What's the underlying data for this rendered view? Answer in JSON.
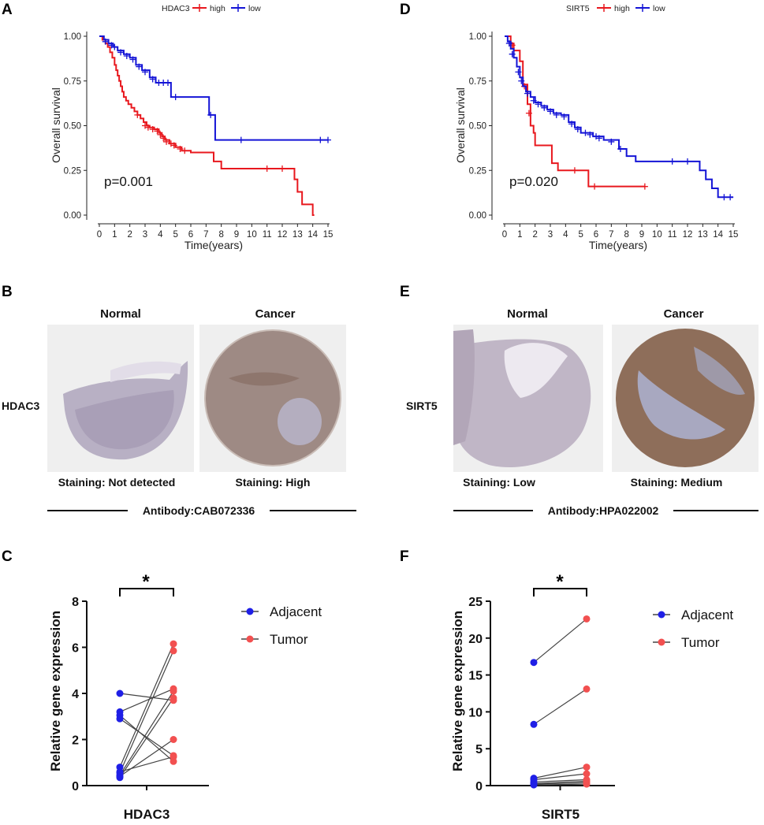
{
  "colors": {
    "high": "#e8181e",
    "low": "#1414d6",
    "adjacent": "#1f1fe6",
    "tumor": "#f25050",
    "line": "#444444"
  },
  "chart_data": [
    {
      "panel": "A",
      "type": "line",
      "subtype": "kaplan-meier",
      "legend_title": "HDAC3",
      "legend": [
        "high",
        "low"
      ],
      "xlabel": "Time(years)",
      "ylabel": "Overall survival",
      "xlim": [
        0,
        15
      ],
      "ylim": [
        0,
        1
      ],
      "xticks": [
        "0",
        "1",
        "2",
        "3",
        "4",
        "5",
        "6",
        "7",
        "8",
        "9",
        "10",
        "11",
        "12",
        "13",
        "14",
        "15"
      ],
      "yticks": [
        "0.00",
        "0.25",
        "0.50",
        "0.75",
        "1.00"
      ],
      "annotation": "p=0.001",
      "series": [
        {
          "name": "high",
          "color_key": "high",
          "steps": [
            [
              0,
              1.0
            ],
            [
              0.2,
              0.98
            ],
            [
              0.4,
              0.96
            ],
            [
              0.55,
              0.94
            ],
            [
              0.7,
              0.91
            ],
            [
              0.85,
              0.88
            ],
            [
              1.0,
              0.84
            ],
            [
              1.1,
              0.81
            ],
            [
              1.2,
              0.78
            ],
            [
              1.3,
              0.75
            ],
            [
              1.4,
              0.72
            ],
            [
              1.5,
              0.69
            ],
            [
              1.6,
              0.66
            ],
            [
              1.75,
              0.64
            ],
            [
              1.9,
              0.62
            ],
            [
              2.1,
              0.6
            ],
            [
              2.3,
              0.58
            ],
            [
              2.5,
              0.56
            ],
            [
              2.7,
              0.54
            ],
            [
              2.9,
              0.52
            ],
            [
              3.1,
              0.5
            ],
            [
              3.3,
              0.49
            ],
            [
              3.6,
              0.48
            ],
            [
              3.9,
              0.46
            ],
            [
              4.1,
              0.44
            ],
            [
              4.3,
              0.42
            ],
            [
              4.6,
              0.4
            ],
            [
              5.0,
              0.38
            ],
            [
              5.4,
              0.36
            ],
            [
              6.0,
              0.35
            ],
            [
              7.5,
              0.3
            ],
            [
              8.0,
              0.26
            ],
            [
              12.8,
              0.2
            ],
            [
              13.0,
              0.13
            ],
            [
              13.3,
              0.06
            ],
            [
              14.0,
              0.0
            ],
            [
              14.1,
              0.0
            ]
          ],
          "censors": [
            [
              2.5,
              0.56
            ],
            [
              3.0,
              0.5
            ],
            [
              3.2,
              0.49
            ],
            [
              3.5,
              0.48
            ],
            [
              3.8,
              0.47
            ],
            [
              4.0,
              0.45
            ],
            [
              4.2,
              0.43
            ],
            [
              4.4,
              0.41
            ],
            [
              4.7,
              0.4
            ],
            [
              4.9,
              0.39
            ],
            [
              5.3,
              0.37
            ],
            [
              5.6,
              0.36
            ],
            [
              11.0,
              0.26
            ],
            [
              12.0,
              0.26
            ]
          ]
        },
        {
          "name": "low",
          "color_key": "low",
          "steps": [
            [
              0,
              1.0
            ],
            [
              0.3,
              0.98
            ],
            [
              0.6,
              0.96
            ],
            [
              0.9,
              0.94
            ],
            [
              1.2,
              0.92
            ],
            [
              1.6,
              0.9
            ],
            [
              2.0,
              0.88
            ],
            [
              2.4,
              0.84
            ],
            [
              2.8,
              0.81
            ],
            [
              3.3,
              0.77
            ],
            [
              3.7,
              0.74
            ],
            [
              4.7,
              0.66
            ],
            [
              7.2,
              0.56
            ],
            [
              7.6,
              0.42
            ],
            [
              15.0,
              0.42
            ]
          ],
          "censors": [
            [
              0.4,
              0.97
            ],
            [
              0.8,
              0.95
            ],
            [
              1.0,
              0.94
            ],
            [
              1.4,
              0.91
            ],
            [
              1.8,
              0.89
            ],
            [
              2.2,
              0.87
            ],
            [
              2.6,
              0.83
            ],
            [
              3.0,
              0.8
            ],
            [
              3.5,
              0.76
            ],
            [
              3.9,
              0.74
            ],
            [
              4.2,
              0.74
            ],
            [
              4.5,
              0.74
            ],
            [
              5.0,
              0.66
            ],
            [
              7.3,
              0.56
            ],
            [
              9.3,
              0.42
            ],
            [
              14.5,
              0.42
            ],
            [
              15.0,
              0.42
            ]
          ]
        }
      ]
    },
    {
      "panel": "D",
      "type": "line",
      "subtype": "kaplan-meier",
      "legend_title": "SIRT5",
      "legend": [
        "high",
        "low"
      ],
      "xlabel": "Time(years)",
      "ylabel": "Overall survival",
      "xlim": [
        0,
        15
      ],
      "ylim": [
        0,
        1
      ],
      "xticks": [
        "0",
        "1",
        "2",
        "3",
        "4",
        "5",
        "6",
        "7",
        "8",
        "9",
        "10",
        "11",
        "12",
        "13",
        "14",
        "15"
      ],
      "yticks": [
        "0.00",
        "0.25",
        "0.50",
        "0.75",
        "1.00"
      ],
      "annotation": "p=0.020",
      "series": [
        {
          "name": "high",
          "color_key": "high",
          "steps": [
            [
              0,
              1.0
            ],
            [
              0.4,
              0.96
            ],
            [
              0.6,
              0.92
            ],
            [
              1.0,
              0.86
            ],
            [
              1.2,
              0.73
            ],
            [
              1.5,
              0.62
            ],
            [
              1.7,
              0.5
            ],
            [
              1.9,
              0.46
            ],
            [
              2.0,
              0.39
            ],
            [
              2.8,
              0.39
            ],
            [
              3.1,
              0.29
            ],
            [
              3.5,
              0.25
            ],
            [
              5.5,
              0.16
            ],
            [
              9.2,
              0.16
            ]
          ],
          "censors": [
            [
              0.5,
              0.95
            ],
            [
              1.3,
              0.72
            ],
            [
              1.6,
              0.57
            ],
            [
              4.6,
              0.25
            ],
            [
              5.9,
              0.16
            ],
            [
              9.2,
              0.16
            ]
          ]
        },
        {
          "name": "low",
          "color_key": "low",
          "steps": [
            [
              0,
              1.0
            ],
            [
              0.2,
              0.97
            ],
            [
              0.4,
              0.93
            ],
            [
              0.6,
              0.88
            ],
            [
              0.8,
              0.83
            ],
            [
              1.0,
              0.77
            ],
            [
              1.2,
              0.72
            ],
            [
              1.4,
              0.69
            ],
            [
              1.7,
              0.66
            ],
            [
              2.0,
              0.63
            ],
            [
              2.4,
              0.61
            ],
            [
              2.8,
              0.59
            ],
            [
              3.2,
              0.57
            ],
            [
              3.7,
              0.56
            ],
            [
              4.2,
              0.52
            ],
            [
              4.6,
              0.49
            ],
            [
              5.0,
              0.46
            ],
            [
              5.8,
              0.44
            ],
            [
              6.5,
              0.42
            ],
            [
              7.5,
              0.37
            ],
            [
              8.0,
              0.33
            ],
            [
              8.6,
              0.3
            ],
            [
              12.0,
              0.3
            ],
            [
              12.8,
              0.25
            ],
            [
              13.2,
              0.2
            ],
            [
              13.6,
              0.15
            ],
            [
              14.0,
              0.1
            ],
            [
              15.0,
              0.1
            ]
          ],
          "censors": [
            [
              0.3,
              0.96
            ],
            [
              0.5,
              0.9
            ],
            [
              0.9,
              0.8
            ],
            [
              1.1,
              0.75
            ],
            [
              1.5,
              0.68
            ],
            [
              1.9,
              0.64
            ],
            [
              2.2,
              0.62
            ],
            [
              2.6,
              0.6
            ],
            [
              3.0,
              0.58
            ],
            [
              3.4,
              0.56
            ],
            [
              3.9,
              0.55
            ],
            [
              4.4,
              0.51
            ],
            [
              4.8,
              0.48
            ],
            [
              5.3,
              0.46
            ],
            [
              5.6,
              0.45
            ],
            [
              6.0,
              0.44
            ],
            [
              6.2,
              0.43
            ],
            [
              7.0,
              0.41
            ],
            [
              7.6,
              0.37
            ],
            [
              11.0,
              0.3
            ],
            [
              12.0,
              0.3
            ],
            [
              14.4,
              0.1
            ],
            [
              14.8,
              0.1
            ]
          ]
        }
      ]
    },
    {
      "panel": "C",
      "type": "scatter",
      "subtype": "paired",
      "categories": [
        "Adjacent",
        "Tumor"
      ],
      "xlabel": "HDAC3",
      "ylabel": "Relative gene expression",
      "ylim": [
        0,
        8
      ],
      "yticks": [
        "0",
        "2",
        "4",
        "6",
        "8"
      ],
      "significance": "*",
      "pairs": [
        [
          4.0,
          3.7
        ],
        [
          3.2,
          4.2
        ],
        [
          3.05,
          1.05
        ],
        [
          2.9,
          1.3
        ],
        [
          0.8,
          6.15
        ],
        [
          0.55,
          5.85
        ],
        [
          0.45,
          4.1
        ],
        [
          0.35,
          3.8
        ],
        [
          0.4,
          2.0
        ],
        [
          0.6,
          1.25
        ]
      ]
    },
    {
      "panel": "F",
      "type": "scatter",
      "subtype": "paired",
      "categories": [
        "Adjacent",
        "Tumor"
      ],
      "xlabel": "SIRT5",
      "ylabel": "Relative gene expression",
      "ylim": [
        0,
        25
      ],
      "yticks": [
        "0",
        "5",
        "10",
        "15",
        "20",
        "25"
      ],
      "significance": "*",
      "pairs": [
        [
          16.7,
          22.6
        ],
        [
          8.3,
          13.1
        ],
        [
          1.0,
          2.5
        ],
        [
          0.8,
          1.6
        ],
        [
          0.5,
          0.8
        ],
        [
          0.3,
          0.6
        ],
        [
          0.2,
          0.4
        ],
        [
          0.1,
          0.2
        ]
      ]
    }
  ],
  "panels": {
    "a": {
      "letter": "A"
    },
    "b": {
      "letter": "B"
    },
    "c": {
      "letter": "C"
    },
    "d": {
      "letter": "D"
    },
    "e": {
      "letter": "E"
    },
    "f": {
      "letter": "F"
    }
  },
  "ihc": {
    "hdac3": {
      "gene": "HDAC3",
      "normal_title": "Normal",
      "cancer_title": "Cancer",
      "normal_staining": "Staining: Not detected",
      "cancer_staining": "Staining: High",
      "antibody": "Antibody:CAB072336"
    },
    "sirt5": {
      "gene": "SIRT5",
      "normal_title": "Normal",
      "cancer_title": "Cancer",
      "normal_staining": "Staining: Low",
      "cancer_staining": "Staining: Medium",
      "antibody": "Antibody:HPA022002"
    }
  },
  "legend_labels": {
    "adjacent": "Adjacent",
    "tumor": "Tumor"
  }
}
